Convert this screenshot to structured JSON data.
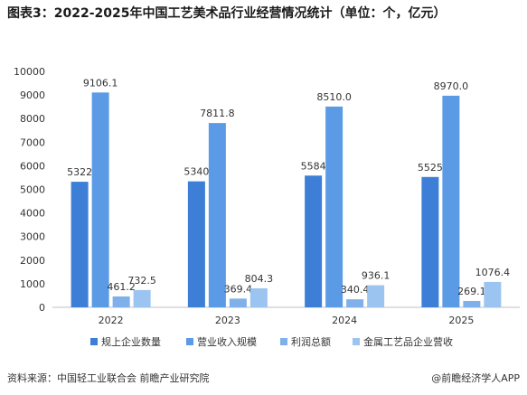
{
  "title": "图表3：2022-2025年中国工艺美术品行业经营情况统计（单位：个，亿元）",
  "source": "资料来源：中国轻工业联合会  前瞻产业研究院",
  "brand": "@前瞻经济学人APP",
  "colors": {
    "axis": "#bfbfbf",
    "text": "#333333"
  },
  "chart_data": {
    "type": "bar",
    "categories": [
      "2022",
      "2023",
      "2024",
      "2025"
    ],
    "ylim": [
      0,
      10000
    ],
    "yticks": [
      0,
      1000,
      2000,
      3000,
      4000,
      5000,
      6000,
      7000,
      8000,
      9000,
      10000
    ],
    "legend_position": "bottom",
    "grid": false,
    "series": [
      {
        "name": "规上企业数量",
        "color": "#3d7fd6",
        "values": [
          5322,
          5340,
          5584,
          5525
        ],
        "labels": [
          "5322",
          "5340",
          "5584",
          "5525"
        ]
      },
      {
        "name": "营业收入规模",
        "color": "#5b9be6",
        "values": [
          9106.1,
          7811.8,
          8510.0,
          8970.0
        ],
        "labels": [
          "9106.1",
          "7811.8",
          "8510.0",
          "8970.0"
        ]
      },
      {
        "name": "利润总额",
        "color": "#7fb0ea",
        "values": [
          461.2,
          369.4,
          340.4,
          269.1
        ],
        "labels": [
          "461.2",
          "369.4",
          "340.4",
          "269.1"
        ]
      },
      {
        "name": "金属工艺品企业营收",
        "color": "#9cc4f0",
        "values": [
          732.5,
          804.3,
          936.1,
          1076.4
        ],
        "labels": [
          "732.5",
          "804.3",
          "936.1",
          "1076.4"
        ]
      }
    ]
  }
}
